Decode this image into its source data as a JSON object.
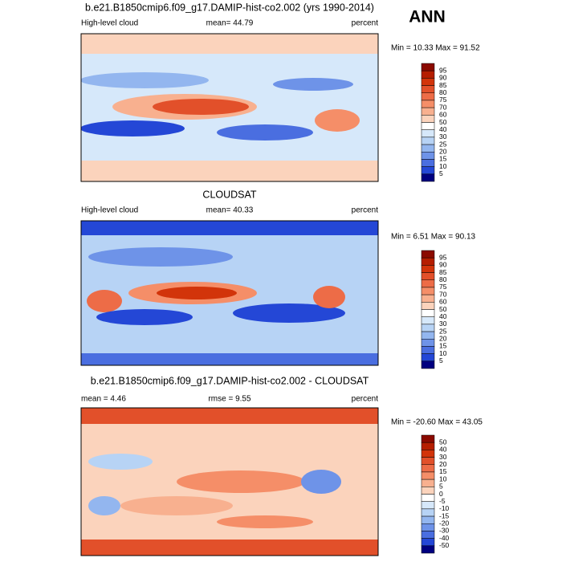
{
  "header": {
    "season": "ANN"
  },
  "panels": [
    {
      "title": "b.e21.B1850cmip6.f09_g17.DAMIP-hist-co2.002 (yrs 1990-2014)",
      "left": "High-level cloud",
      "center": "mean=  44.79",
      "right": "percent",
      "minmax": "Min =  10.33 Max =  91.52",
      "colorbar": [
        "95",
        "90",
        "85",
        "80",
        "75",
        "70",
        "60",
        "50",
        "40",
        "30",
        "25",
        "20",
        "15",
        "10",
        "5"
      ],
      "colors": [
        "#8b0a00",
        "#b51e00",
        "#d2340a",
        "#e2502a",
        "#ed6c47",
        "#f58e68",
        "#f8b08f",
        "#fbd3bc",
        "#ffffff",
        "#d6e8fa",
        "#b7d3f5",
        "#93b6ef",
        "#6e93e8",
        "#4a6ee0",
        "#2447d6",
        "#000080"
      ]
    },
    {
      "title": "CLOUDSAT",
      "left": "High-level cloud",
      "center": "mean=  40.33",
      "right": "percent",
      "minmax": "Min =   6.51 Max =  90.13",
      "colorbar": [
        "95",
        "90",
        "85",
        "80",
        "75",
        "70",
        "60",
        "50",
        "40",
        "30",
        "25",
        "20",
        "15",
        "10",
        "5"
      ],
      "colors": [
        "#8b0a00",
        "#b51e00",
        "#d2340a",
        "#e2502a",
        "#ed6c47",
        "#f58e68",
        "#f8b08f",
        "#fbd3bc",
        "#ffffff",
        "#d6e8fa",
        "#b7d3f5",
        "#93b6ef",
        "#6e93e8",
        "#4a6ee0",
        "#2447d6",
        "#000080"
      ]
    },
    {
      "title": "b.e21.B1850cmip6.f09_g17.DAMIP-hist-co2.002 - CLOUDSAT",
      "left": "mean =   4.46",
      "center": "rmse =   9.55",
      "right": "percent",
      "minmax": "Min = -20.60 Max =  43.05",
      "colorbar": [
        "50",
        "40",
        "30",
        "20",
        "15",
        "10",
        "5",
        "0",
        "-5",
        "-10",
        "-15",
        "-20",
        "-30",
        "-40",
        "-50"
      ],
      "colors": [
        "#8b0a00",
        "#b51e00",
        "#d2340a",
        "#e2502a",
        "#ed6c47",
        "#f58e68",
        "#f8b08f",
        "#fbd3bc",
        "#ffffff",
        "#d6e8fa",
        "#b7d3f5",
        "#93b6ef",
        "#6e93e8",
        "#4a6ee0",
        "#2447d6",
        "#000080"
      ]
    }
  ]
}
